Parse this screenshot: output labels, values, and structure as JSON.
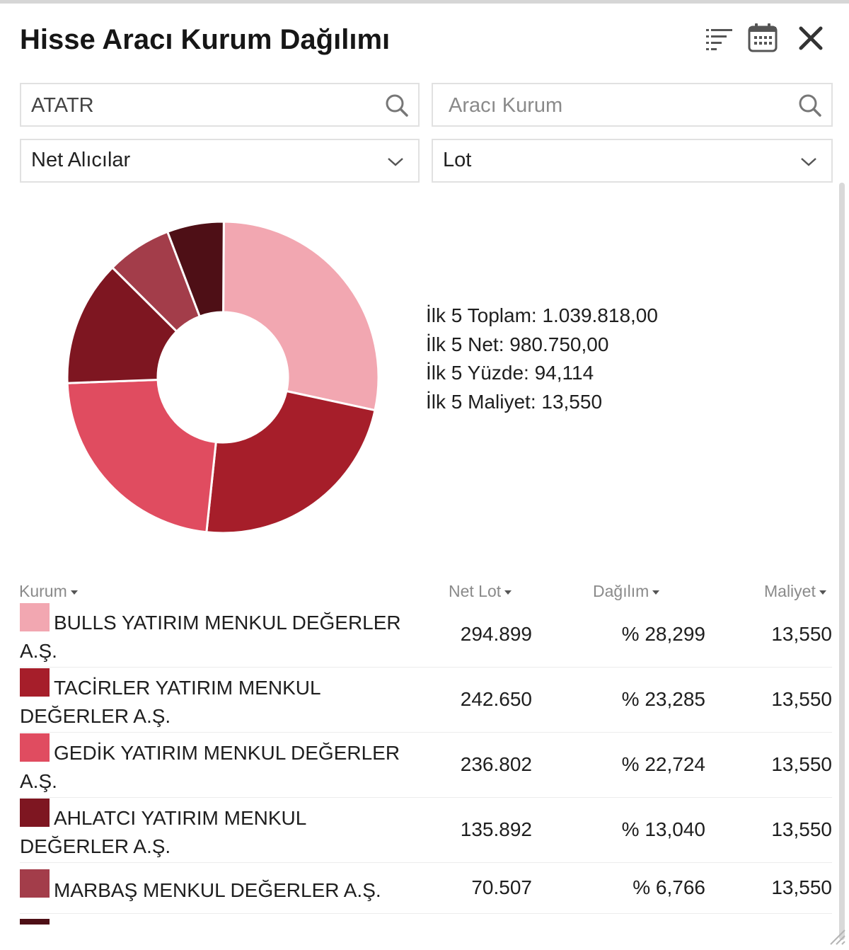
{
  "window": {
    "title": "Hisse Aracı Kurum Dağılımı",
    "icons": [
      "sort-icon",
      "calendar-icon",
      "close-icon"
    ]
  },
  "filters": {
    "symbol": {
      "value": "ATATR",
      "icon": "search-icon"
    },
    "broker": {
      "placeholder": "Aracı Kurum",
      "icon": "search-icon"
    },
    "side": {
      "selected": "Net Alıcılar"
    },
    "unit": {
      "selected": "Lot"
    }
  },
  "summary": {
    "total": "İlk 5 Toplam: 1.039.818,00",
    "net": "İlk 5 Net: 980.750,00",
    "percent": "İlk 5 Yüzde: 94,114",
    "cost": "İlk 5 Maliyet: 13,550"
  },
  "chart_data": {
    "type": "pie",
    "donut": true,
    "slices": [
      {
        "label": "BULLS YATIRIM MENKUL DEĞERLER A.Ş.",
        "value": 28.299,
        "color": "#f2a7b1"
      },
      {
        "label": "TACİRLER YATIRIM MENKUL DEĞERLER A.Ş.",
        "value": 23.285,
        "color": "#a61e2a"
      },
      {
        "label": "GEDİK YATIRIM MENKUL DEĞERLER A.Ş.",
        "value": 22.724,
        "color": "#e04c60"
      },
      {
        "label": "AHLATCI YATIRIM MENKUL DEĞERLER A.Ş.",
        "value": 13.04,
        "color": "#7e1621"
      },
      {
        "label": "MARBAŞ MENKUL DEĞERLER A.Ş.",
        "value": 6.766,
        "color": "#a33d4a"
      },
      {
        "label": "",
        "value": 5.886,
        "color": "#4e0f16"
      }
    ]
  },
  "table": {
    "headers": {
      "kurum": "Kurum",
      "net_lot": "Net Lot",
      "dagilim": "Dağılım",
      "maliyet": "Maliyet"
    },
    "rows": [
      {
        "name": "BULLS YATIRIM MENKUL DEĞERLER A.Ş.",
        "net_lot": "294.899",
        "dagilim": "% 28,299",
        "maliyet": "13,550",
        "color": "#f2a7b1"
      },
      {
        "name": "TACİRLER YATIRIM MENKUL DEĞERLER A.Ş.",
        "net_lot": "242.650",
        "dagilim": "% 23,285",
        "maliyet": "13,550",
        "color": "#a61e2a"
      },
      {
        "name": "GEDİK YATIRIM MENKUL DEĞERLER A.Ş.",
        "net_lot": "236.802",
        "dagilim": "% 22,724",
        "maliyet": "13,550",
        "color": "#e04c60"
      },
      {
        "name": "AHLATCI YATIRIM MENKUL DEĞERLER A.Ş.",
        "net_lot": "135.892",
        "dagilim": "% 13,040",
        "maliyet": "13,550",
        "color": "#7e1621"
      },
      {
        "name": "MARBAŞ MENKUL DEĞERLER A.Ş.",
        "net_lot": "70.507",
        "dagilim": "% 6,766",
        "maliyet": "13,550",
        "color": "#a33d4a"
      },
      {
        "name": "",
        "net_lot": "",
        "dagilim": "",
        "maliyet": "",
        "color": "#4e0f16"
      }
    ]
  }
}
